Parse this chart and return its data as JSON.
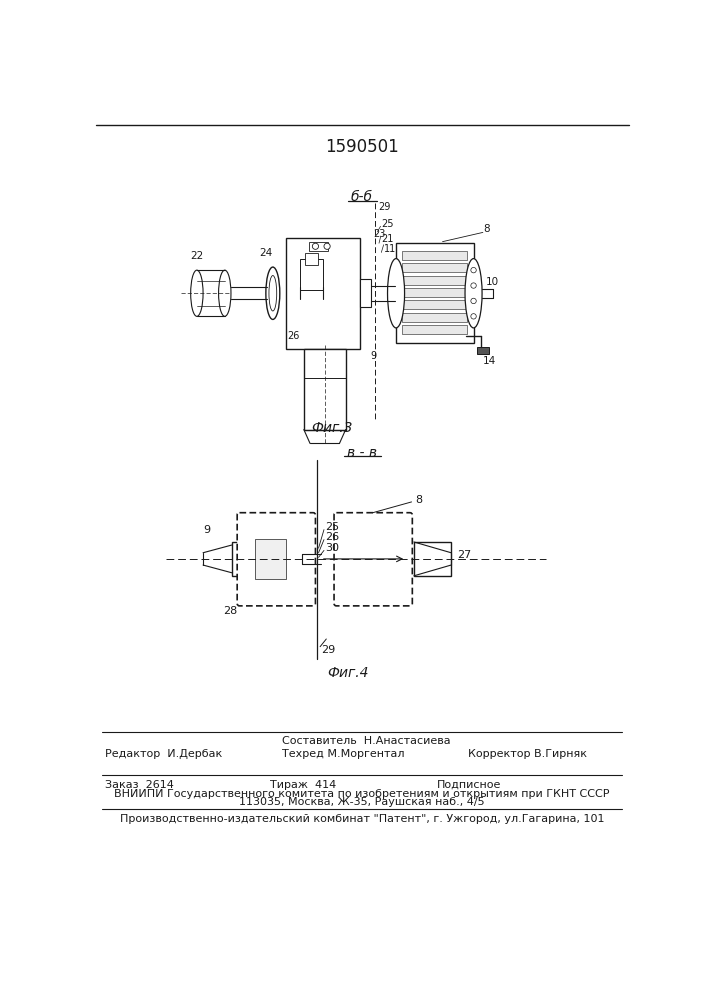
{
  "title": "1590501",
  "fig3_label": "б-б",
  "fig4_label": "в - в",
  "fig3_caption": "Фиг.3",
  "fig4_caption": "Фиг.4",
  "footer_sestavitel": "Составитель  Н.Анастасиева",
  "footer_redaktor": "Редактор  И.Дербак",
  "footer_tehred": "Техред М.Моргентал",
  "footer_korrektor": "Корректор В.Гирняк",
  "footer_zakaz": "Заказ  2614",
  "footer_tirazh": "Тираж  414",
  "footer_podpisnoe": "Подписное",
  "footer_vniip1": "ВНИИПИ Государственного комитета по изобретениям и открытиям при ГКНТ СССР",
  "footer_vniip2": "113035, Москва, Ж-35, Раушская наб., 4/5",
  "footer_patent": "Производственно-издательский комбинат \"Патент\", г. Ужгород, ул.Гагарина, 101",
  "line_color": "#1a1a1a",
  "text_color": "#1a1a1a"
}
